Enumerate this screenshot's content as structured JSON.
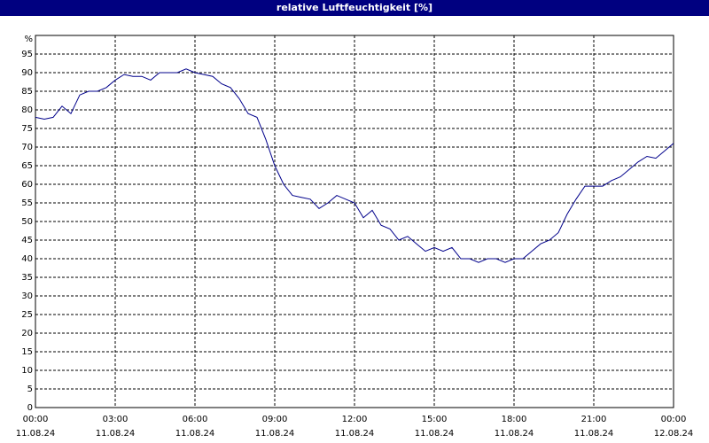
{
  "chart_data": {
    "type": "line",
    "title": "relative Luftfeuchtigkeit [%]",
    "y_unit": "%",
    "x": [
      0,
      20,
      40,
      60,
      80,
      100,
      120,
      140,
      160,
      180,
      200,
      220,
      240,
      260,
      280,
      300,
      320,
      340,
      360,
      380,
      400,
      420,
      440,
      460,
      480,
      500,
      520,
      540,
      560,
      580,
      600,
      620,
      640,
      660,
      680,
      700,
      720,
      740,
      760,
      780,
      800,
      820,
      840,
      860,
      880,
      900,
      920,
      940,
      960,
      980,
      1000,
      1020,
      1040,
      1060,
      1080,
      1100,
      1120,
      1140,
      1160,
      1180,
      1200,
      1220,
      1240,
      1260,
      1280,
      1300,
      1320,
      1340,
      1360,
      1380,
      1400,
      1420,
      1440
    ],
    "series": [
      {
        "name": "relative Luftfeuchtigkeit",
        "color": "#00008b",
        "values": [
          78,
          77.5,
          78,
          81,
          79,
          84,
          85,
          85,
          86,
          88,
          89.5,
          89,
          89,
          88,
          90,
          90,
          90,
          91,
          90,
          89.5,
          89,
          87,
          86,
          83,
          79,
          78,
          72,
          65,
          60,
          57,
          56.5,
          56,
          53.5,
          55,
          57,
          56,
          55,
          51,
          53,
          49,
          48,
          45,
          46,
          44,
          42,
          43,
          42,
          43,
          40,
          40,
          39,
          40,
          40,
          39,
          40,
          40,
          42,
          44,
          45,
          47,
          52,
          56,
          59.5,
          59.5,
          59.5,
          61,
          62,
          64,
          66,
          67.5,
          67,
          69,
          71
        ]
      }
    ],
    "xlim": [
      0,
      1440
    ],
    "xticks": [
      {
        "value": 0,
        "label": "00:00"
      },
      {
        "value": 180,
        "label": "03:00"
      },
      {
        "value": 360,
        "label": "06:00"
      },
      {
        "value": 540,
        "label": "09:00"
      },
      {
        "value": 720,
        "label": "12:00"
      },
      {
        "value": 900,
        "label": "15:00"
      },
      {
        "value": 1080,
        "label": "18:00"
      },
      {
        "value": 1260,
        "label": "21:00"
      },
      {
        "value": 1440,
        "label": "00:00"
      }
    ],
    "xtick_dates": [
      "11.08.24",
      "11.08.24",
      "11.08.24",
      "11.08.24",
      "11.08.24",
      "11.08.24",
      "11.08.24",
      "11.08.24",
      "12.08.24"
    ],
    "ylim": [
      0,
      100
    ],
    "yticks": [
      0,
      5,
      10,
      15,
      20,
      25,
      30,
      35,
      40,
      45,
      50,
      55,
      60,
      65,
      70,
      75,
      80,
      85,
      90,
      95
    ],
    "grid": true
  }
}
